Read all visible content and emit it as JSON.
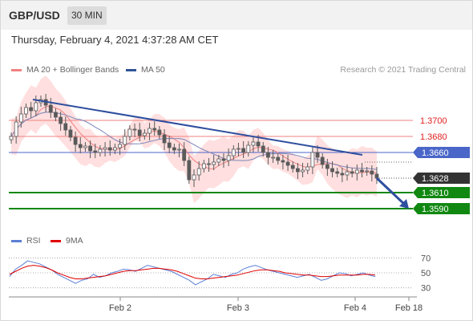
{
  "header": {
    "symbol": "GBP/USD",
    "interval": "30 MIN"
  },
  "datetime": "Thursday, February 4, 2021 4:37:28 AM CET",
  "legend": {
    "ma_bb": {
      "label": "MA 20 + Bollinger Bands",
      "color": "#f08080"
    },
    "ma50": {
      "label": "MA 50",
      "color": "#2e5597"
    },
    "copyright": "Research © 2021 Trading Central"
  },
  "rsi_legend": {
    "rsi": {
      "label": "RSI",
      "color": "#5b7fd6"
    },
    "ma9": {
      "label": "9MA",
      "color": "#e00000"
    }
  },
  "colors": {
    "price_line": "#4a66c8",
    "resistance": "#f08080",
    "support": "#118811",
    "trendline": "#2e4e9e",
    "current_tag": "#333333",
    "bb_fill": "#ffd9d9",
    "candle": "#5a5a5a"
  },
  "chart_data": [
    {
      "type": "candlestick",
      "instrument": "GBP/USD",
      "timeframe": "30 MIN",
      "x_ticks": [
        "Feb 2",
        "Feb 3",
        "Feb 4",
        "Feb 18"
      ],
      "y_range": [
        1.3565,
        1.375
      ],
      "levels": [
        {
          "label": "1.3700",
          "value": 1.37,
          "kind": "resistance"
        },
        {
          "label": "1.3680",
          "value": 1.368,
          "kind": "resistance"
        },
        {
          "label": "1.3660",
          "value": 1.366,
          "kind": "pivot"
        },
        {
          "label": "1.3628",
          "value": 1.3628,
          "kind": "current"
        },
        {
          "label": "1.3610",
          "value": 1.361,
          "kind": "support"
        },
        {
          "label": "1.3590",
          "value": 1.359,
          "kind": "support"
        }
      ],
      "close_series": [
        1.368,
        1.3698,
        1.3708,
        1.3716,
        1.3712,
        1.3722,
        1.3726,
        1.3719,
        1.371,
        1.3704,
        1.3696,
        1.3688,
        1.3679,
        1.367,
        1.3666,
        1.3668,
        1.3662,
        1.366,
        1.3664,
        1.3666,
        1.3663,
        1.3666,
        1.367,
        1.368,
        1.3689,
        1.3688,
        1.3681,
        1.3684,
        1.369,
        1.3688,
        1.3682,
        1.3672,
        1.3666,
        1.3663,
        1.3664,
        1.365,
        1.3626,
        1.3632,
        1.364,
        1.3646,
        1.3645,
        1.3648,
        1.3652,
        1.365,
        1.3656,
        1.3664,
        1.3665,
        1.366,
        1.3669,
        1.3673,
        1.3668,
        1.366,
        1.3654,
        1.3654,
        1.365,
        1.3648,
        1.3644,
        1.364,
        1.3636,
        1.3638,
        1.3642,
        1.366,
        1.3654,
        1.3645,
        1.364,
        1.3636,
        1.3634,
        1.3632,
        1.3636,
        1.3634,
        1.3638,
        1.3636,
        1.3637,
        1.3633,
        1.3628
      ],
      "trendline": {
        "from": 1.3726,
        "to": 1.3657
      },
      "forecast_arrow": {
        "from": 1.3628,
        "to": 1.359
      }
    },
    {
      "type": "line",
      "name": "RSI",
      "y_ticks": [
        "70",
        "50",
        "30"
      ],
      "ylim": [
        20,
        80
      ],
      "series": [
        {
          "name": "RSI",
          "values": [
            45,
            55,
            60,
            66,
            64,
            62,
            58,
            54,
            48,
            44,
            40,
            36,
            40,
            42,
            48,
            44,
            46,
            50,
            52,
            55,
            54,
            52,
            56,
            60,
            58,
            56,
            54,
            52,
            48,
            44,
            40,
            34,
            38,
            42,
            48,
            46,
            44,
            48,
            50,
            55,
            58,
            60,
            57,
            54,
            52,
            50,
            48,
            46,
            44,
            46,
            48,
            44,
            40,
            42,
            46,
            50,
            49,
            46,
            48,
            50,
            47,
            45
          ]
        },
        {
          "name": "9MA",
          "values": [
            48,
            52,
            56,
            59,
            60,
            59,
            57,
            54,
            50,
            47,
            44,
            42,
            42,
            43,
            44,
            45,
            46,
            48,
            50,
            52,
            53,
            53,
            54,
            55,
            56,
            56,
            55,
            54,
            52,
            49,
            46,
            43,
            42,
            42,
            43,
            44,
            45,
            46,
            47,
            49,
            51,
            53,
            54,
            54,
            53,
            52,
            50,
            49,
            48,
            47,
            47,
            46,
            45,
            45,
            46,
            47,
            47,
            47,
            47,
            48,
            48,
            47
          ]
        }
      ]
    }
  ]
}
